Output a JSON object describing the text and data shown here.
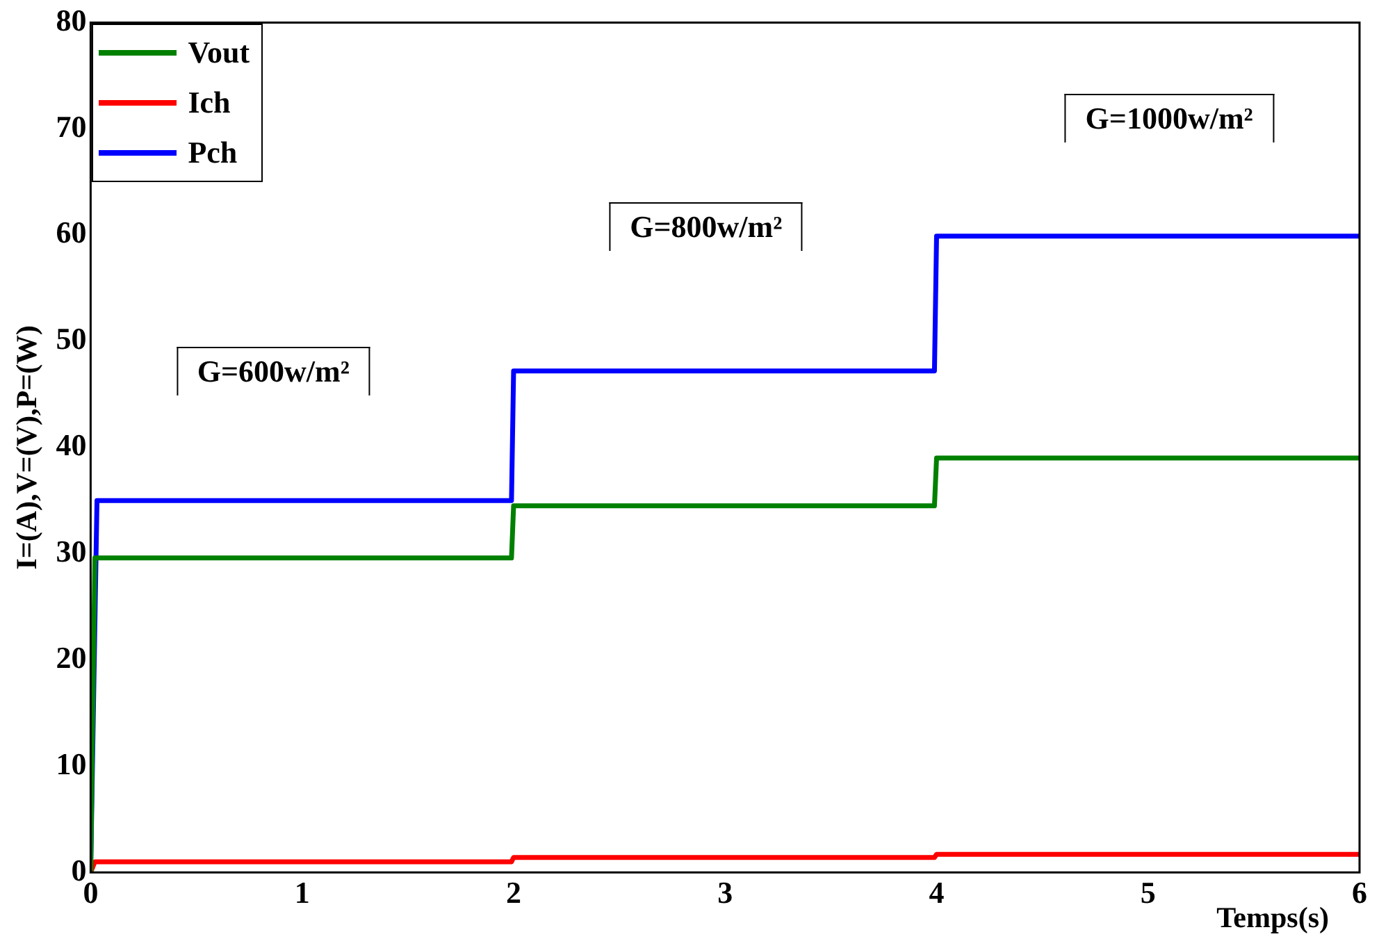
{
  "chart_data": {
    "type": "line",
    "xlabel": "Temps(s)",
    "ylabel": "I=(A),V=(V),P=(W)",
    "xlim": [
      0,
      6
    ],
    "xticks": [
      0,
      1,
      2,
      3,
      4,
      5,
      6
    ],
    "ylim": [
      0,
      80
    ],
    "yticks": [
      0,
      10,
      20,
      30,
      40,
      50,
      60,
      70,
      80
    ],
    "grid": false,
    "legend": "top left",
    "marker": "none",
    "line_style": "solid",
    "series": [
      {
        "name": "Vout",
        "color": "#008000",
        "x": [
          0,
          0.02,
          1.99,
          2.0,
          3.99,
          4.0,
          6
        ],
        "values": [
          0,
          29.6,
          29.6,
          34.5,
          34.5,
          39,
          39
        ]
      },
      {
        "name": "Ich",
        "color": "#ff0000",
        "x": [
          0,
          0.02,
          1.99,
          2.0,
          3.99,
          4.0,
          6
        ],
        "values": [
          0,
          1,
          1,
          1.4,
          1.4,
          1.7,
          1.7
        ]
      },
      {
        "name": "Pch",
        "color": "#0000ff",
        "x": [
          0,
          0.03,
          1.99,
          2.0,
          3.99,
          4.0,
          6
        ],
        "values": [
          0,
          35,
          35,
          47.2,
          47.2,
          59.9,
          59.9
        ]
      }
    ],
    "annotations": [
      "G=600w/m²",
      "G=800w/m²",
      "G=1000w/m²"
    ]
  }
}
